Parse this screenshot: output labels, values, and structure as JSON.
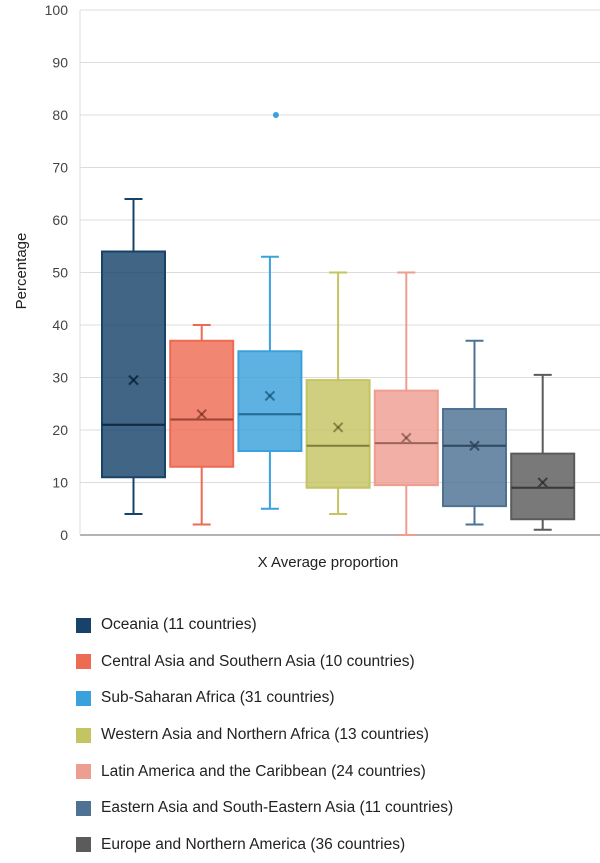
{
  "chart_data": {
    "type": "box",
    "ylabel": "Percentage",
    "xlabel": "X Average proportion",
    "ylim": [
      0,
      100
    ],
    "yticks": [
      "0",
      "10",
      "20",
      "30",
      "40",
      "50",
      "60",
      "70",
      "80",
      "90",
      "100"
    ],
    "grid": true,
    "legend_position": "bottom",
    "series": [
      {
        "name": "Oceania (11 countries)",
        "color": "#17436a",
        "min": 4,
        "q1": 11,
        "median": 21,
        "q3": 54,
        "max": 64,
        "mean": 29.5,
        "outliers": []
      },
      {
        "name": "Central Asia and Southern Asia (10 countries)",
        "color": "#ee6b53",
        "min": 2,
        "q1": 13,
        "median": 22,
        "q3": 37,
        "max": 40,
        "mean": 23,
        "outliers": []
      },
      {
        "name": "Sub-Saharan Africa (31 countries)",
        "color": "#3aa1dc",
        "min": 5,
        "q1": 16,
        "median": 23,
        "q3": 35,
        "max": 53,
        "mean": 26.5,
        "outliers": [
          80
        ]
      },
      {
        "name": "Western Asia and Northern Africa (13 countries)",
        "color": "#c5c463",
        "min": 4,
        "q1": 9,
        "median": 17,
        "q3": 29.5,
        "max": 50,
        "mean": 20.5,
        "outliers": []
      },
      {
        "name": "Latin America and the Caribbean (24 countries)",
        "color": "#ee9d91",
        "min": 0,
        "q1": 9.5,
        "median": 17.5,
        "q3": 27.5,
        "max": 50,
        "mean": 18.5,
        "outliers": []
      },
      {
        "name": "Eastern Asia and South-Eastern Asia (11 countries)",
        "color": "#4d7294",
        "min": 2,
        "q1": 5.5,
        "median": 17,
        "q3": 24,
        "max": 37,
        "mean": 17,
        "outliers": []
      },
      {
        "name": "Europe and Northern America (36 countries)",
        "color": "#5b5b5b",
        "min": 1,
        "q1": 3,
        "median": 9,
        "q3": 15.5,
        "max": 30.5,
        "mean": 10,
        "outliers": []
      }
    ]
  }
}
